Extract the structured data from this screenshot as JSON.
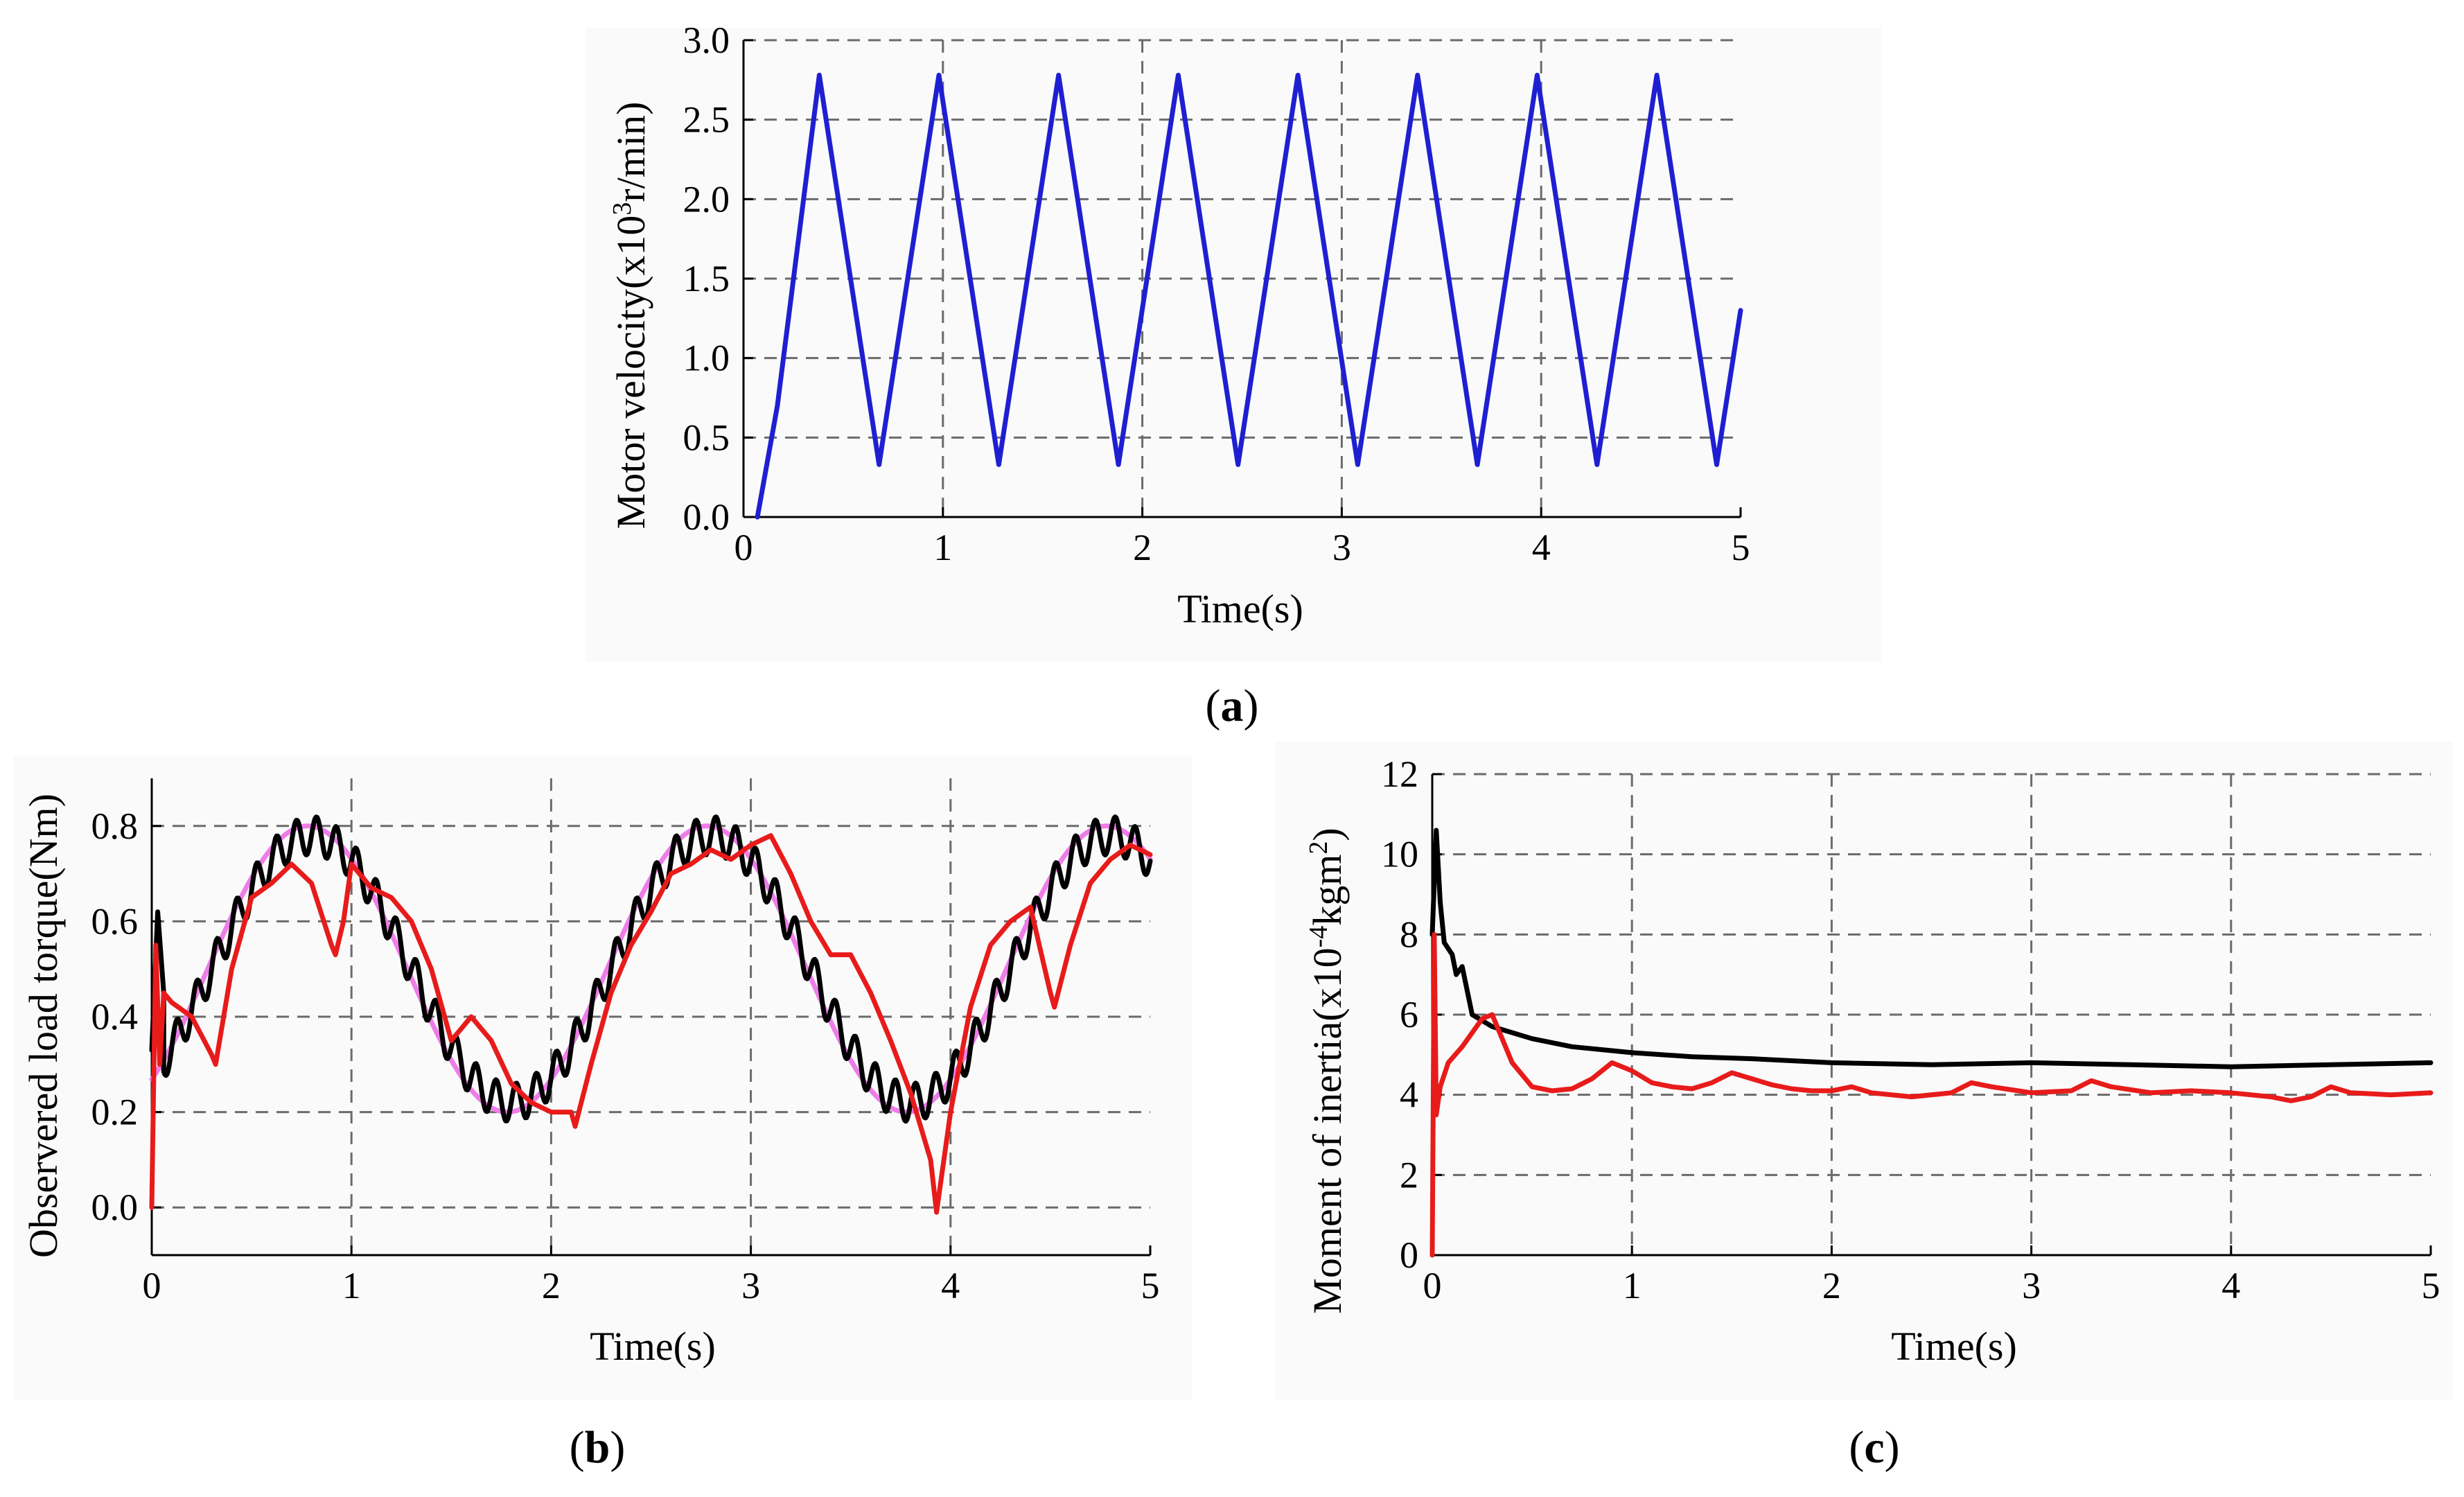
{
  "chart_data": [
    {
      "id": "a",
      "type": "line",
      "caption_letter": "a",
      "xlabel": "Time(s)",
      "ylabel_prefix": "Motor velocity(x10",
      "ylabel_sup": "3",
      "ylabel_suffix": "r/min)",
      "xlim": [
        0,
        5
      ],
      "ylim": [
        0,
        3.0
      ],
      "xticks": [
        "0",
        "1",
        "2",
        "3",
        "4",
        "5"
      ],
      "yticks": [
        "0.0",
        "0.5",
        "1.0",
        "1.5",
        "2.0",
        "2.5",
        "3.0"
      ],
      "grid": true,
      "series": [
        {
          "name": "motor velocity",
          "color": "#1f1fd2",
          "x": [
            0.07,
            0.17,
            0.38,
            0.68,
            0.98,
            1.28,
            1.58,
            1.88,
            2.18,
            2.48,
            2.78,
            3.08,
            3.38,
            3.68,
            3.98,
            4.28,
            4.58,
            4.88,
            5.0
          ],
          "y": [
            0.0,
            0.7,
            2.78,
            0.33,
            2.78,
            0.33,
            2.78,
            0.33,
            2.78,
            0.33,
            2.78,
            0.33,
            2.78,
            0.33,
            2.78,
            0.33,
            2.78,
            0.33,
            1.3
          ]
        }
      ]
    },
    {
      "id": "b",
      "type": "line",
      "caption_letter": "b",
      "xlabel": "Time(s)",
      "ylabel": "Observered load torque(Nm)",
      "xlim": [
        0,
        5
      ],
      "ylim": [
        -0.1,
        0.9
      ],
      "xticks": [
        "0",
        "1",
        "2",
        "3",
        "4",
        "5"
      ],
      "yticks": [
        "0.0",
        "0.2",
        "0.4",
        "0.6",
        "0.8"
      ],
      "grid": true,
      "series": [
        {
          "name": "reference load torque (sinusoid)",
          "color": "#ee7de9",
          "model": {
            "offset": 0.5,
            "amplitude": 0.3,
            "period": 2.0,
            "peak_time": 0.78
          }
        },
        {
          "name": "observed torque (black)",
          "color": "#000000",
          "model": {
            "offset": 0.5,
            "amplitude": 0.28,
            "period": 2.0,
            "peak_time": 0.8,
            "ripple_amplitude": 0.04,
            "ripple_period": 0.1
          },
          "start_points": [
            [
              0.0,
              0.33
            ],
            [
              0.03,
              0.62
            ],
            [
              0.06,
              0.45
            ]
          ]
        },
        {
          "name": "observed torque (red)",
          "color": "#e81b1b",
          "x": [
            0.0,
            0.02,
            0.04,
            0.06,
            0.1,
            0.2,
            0.3,
            0.32,
            0.4,
            0.5,
            0.6,
            0.7,
            0.8,
            0.9,
            0.92,
            0.96,
            1.0,
            1.1,
            1.2,
            1.3,
            1.4,
            1.5,
            1.6,
            1.7,
            1.8,
            1.9,
            2.0,
            2.1,
            2.12,
            2.2,
            2.3,
            2.4,
            2.5,
            2.6,
            2.7,
            2.8,
            2.9,
            3.0,
            3.1,
            3.2,
            3.3,
            3.4,
            3.5,
            3.6,
            3.7,
            3.8,
            3.9,
            3.93,
            4.0,
            4.1,
            4.2,
            4.3,
            4.4,
            4.5,
            4.52,
            4.6,
            4.7,
            4.8,
            4.9,
            5.0
          ],
          "y": [
            0.0,
            0.55,
            0.3,
            0.45,
            0.43,
            0.4,
            0.32,
            0.3,
            0.5,
            0.65,
            0.68,
            0.72,
            0.68,
            0.55,
            0.53,
            0.6,
            0.72,
            0.67,
            0.65,
            0.6,
            0.5,
            0.35,
            0.4,
            0.35,
            0.26,
            0.22,
            0.2,
            0.2,
            0.17,
            0.3,
            0.45,
            0.55,
            0.62,
            0.7,
            0.72,
            0.75,
            0.73,
            0.76,
            0.78,
            0.7,
            0.6,
            0.53,
            0.53,
            0.45,
            0.35,
            0.24,
            0.1,
            -0.01,
            0.2,
            0.42,
            0.55,
            0.6,
            0.63,
            0.45,
            0.42,
            0.55,
            0.68,
            0.73,
            0.76,
            0.74
          ]
        }
      ]
    },
    {
      "id": "c",
      "type": "line",
      "caption_letter": "c",
      "xlabel": "Time(s)",
      "ylabel_prefix": "Moment of inertia(x10",
      "ylabel_sup": "-4",
      "ylabel_mid": "kgm",
      "ylabel_sup2": "2",
      "ylabel_suffix": ")",
      "xlim": [
        0,
        5
      ],
      "ylim": [
        0,
        12
      ],
      "xticks": [
        "0",
        "1",
        "2",
        "3",
        "4",
        "5"
      ],
      "yticks": [
        "0",
        "2",
        "4",
        "6",
        "8",
        "10",
        "12"
      ],
      "grid": true,
      "series": [
        {
          "name": "inertia estimate (black)",
          "color": "#000000",
          "x": [
            0.0,
            0.02,
            0.04,
            0.06,
            0.1,
            0.12,
            0.15,
            0.2,
            0.3,
            0.5,
            0.7,
            1.0,
            1.3,
            1.6,
            2.0,
            2.5,
            3.0,
            3.5,
            4.0,
            4.5,
            5.0
          ],
          "y": [
            8.0,
            10.6,
            8.8,
            7.8,
            7.5,
            7.0,
            7.2,
            6.0,
            5.7,
            5.4,
            5.2,
            5.05,
            4.95,
            4.9,
            4.8,
            4.75,
            4.8,
            4.75,
            4.7,
            4.75,
            4.8
          ]
        },
        {
          "name": "inertia estimate (red)",
          "color": "#e81b1b",
          "x": [
            0.0,
            0.01,
            0.02,
            0.04,
            0.08,
            0.15,
            0.25,
            0.3,
            0.4,
            0.5,
            0.6,
            0.7,
            0.8,
            0.9,
            1.0,
            1.1,
            1.2,
            1.3,
            1.4,
            1.5,
            1.6,
            1.7,
            1.8,
            1.9,
            2.0,
            2.1,
            2.2,
            2.4,
            2.6,
            2.7,
            2.8,
            3.0,
            3.2,
            3.3,
            3.4,
            3.6,
            3.8,
            4.0,
            4.2,
            4.3,
            4.4,
            4.5,
            4.6,
            4.8,
            5.0
          ],
          "y": [
            0.0,
            8.0,
            3.5,
            4.2,
            4.8,
            5.2,
            5.9,
            6.0,
            4.8,
            4.2,
            4.1,
            4.15,
            4.4,
            4.8,
            4.6,
            4.3,
            4.2,
            4.15,
            4.3,
            4.55,
            4.4,
            4.25,
            4.15,
            4.1,
            4.1,
            4.2,
            4.05,
            3.95,
            4.05,
            4.3,
            4.2,
            4.05,
            4.1,
            4.35,
            4.2,
            4.05,
            4.1,
            4.05,
            3.95,
            3.85,
            3.95,
            4.2,
            4.05,
            4.0,
            4.05
          ]
        }
      ]
    }
  ]
}
